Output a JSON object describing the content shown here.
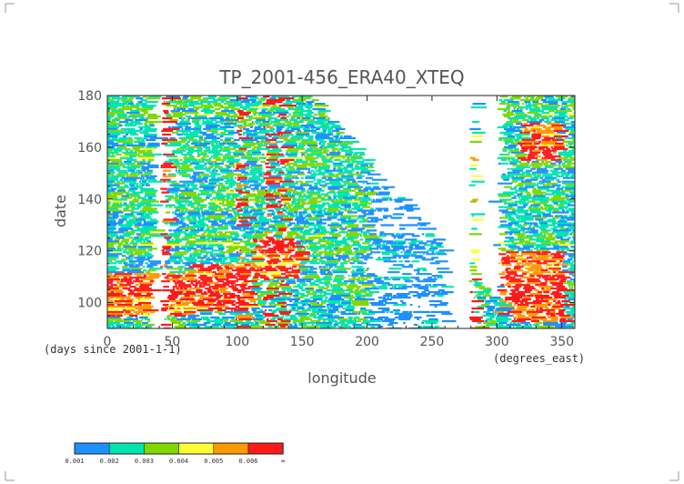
{
  "chart_data": {
    "type": "heatmap",
    "title": "TP_2001-456_ERA40_XTEQ",
    "xlabel": "longitude",
    "ylabel": "date",
    "x_units_note": "(degrees_east)",
    "y_units_note": "(days since 2001-1-1)",
    "xlim": [
      0,
      360
    ],
    "ylim": [
      90,
      180
    ],
    "x_ticks": [
      0,
      50,
      100,
      150,
      200,
      250,
      300,
      350
    ],
    "y_ticks": [
      100,
      120,
      140,
      160,
      180
    ],
    "colorbar": {
      "colors": [
        "#1e90ff",
        "#00e5b0",
        "#7fd900",
        "#ffff33",
        "#ff9900",
        "#ff1a1a"
      ],
      "labels": [
        "0.001",
        "0.002",
        "0.003",
        "0.004",
        "0.005",
        "0.006",
        "∞"
      ]
    },
    "features": {
      "empty_bands": [
        [
          33,
          42
        ],
        [
          258,
          278
        ]
      ],
      "high_columns": [
        42,
        100,
        121,
        132,
        280
      ],
      "high_patches": [
        {
          "x": [
            60,
            110
          ],
          "y": [
            97,
            115
          ]
        },
        {
          "x": [
            110,
            145
          ],
          "y": [
            110,
            125
          ]
        },
        {
          "x": [
            300,
            350
          ],
          "y": [
            93,
            120
          ]
        },
        {
          "x": [
            315,
            345
          ],
          "y": [
            155,
            170
          ]
        },
        {
          "x": [
            0,
            60
          ],
          "y": [
            95,
            112
          ]
        }
      ]
    }
  }
}
